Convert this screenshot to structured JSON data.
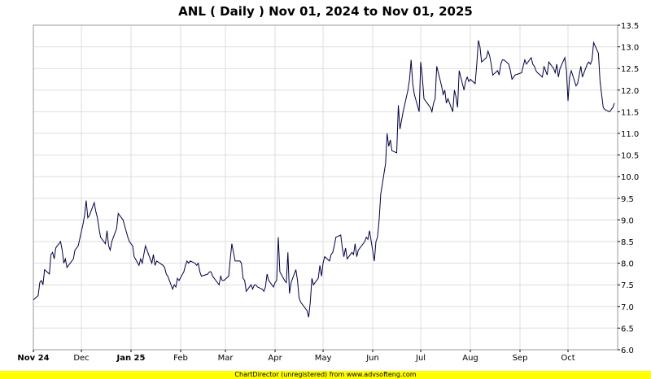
{
  "chart_data": {
    "type": "line",
    "title": "ANL ( Daily ) Nov 01, 2024 to Nov 01, 2025",
    "xlabel": "",
    "ylabel": "",
    "ylim": [
      6.0,
      13.5
    ],
    "y_ticks": [
      "6.0",
      "6.5",
      "7.0",
      "7.5",
      "8.0",
      "8.5",
      "9.0",
      "9.5",
      "10.0",
      "10.5",
      "11.0",
      "11.5",
      "12.0",
      "12.5",
      "13.0",
      "13.5"
    ],
    "y_axis_position": "right",
    "x_ticks": [
      {
        "label": "Nov 24",
        "date": "2024-11-01",
        "bold": true
      },
      {
        "label": "Dec",
        "date": "2024-12-01",
        "bold": false
      },
      {
        "label": "Jan 25",
        "date": "2025-01-01",
        "bold": true
      },
      {
        "label": "Feb",
        "date": "2025-02-01",
        "bold": false
      },
      {
        "label": "Mar",
        "date": "2025-03-01",
        "bold": false
      },
      {
        "label": "Apr",
        "date": "2025-04-01",
        "bold": false
      },
      {
        "label": "May",
        "date": "2025-05-01",
        "bold": false
      },
      {
        "label": "Jun",
        "date": "2025-06-01",
        "bold": false
      },
      {
        "label": "Jul",
        "date": "2025-07-01",
        "bold": false
      },
      {
        "label": "Aug",
        "date": "2025-08-01",
        "bold": false
      },
      {
        "label": "Sep",
        "date": "2025-09-01",
        "bold": false
      },
      {
        "label": "Oct",
        "date": "2025-10-01",
        "bold": false
      }
    ],
    "xlim": [
      "2024-11-01",
      "2025-11-01"
    ],
    "grid": true,
    "line_color": "#000040",
    "series": [
      {
        "values": [
          [
            "2024-11-01",
            7.15
          ],
          [
            "2024-11-04",
            7.25
          ],
          [
            "2024-11-05",
            7.55
          ],
          [
            "2024-11-06",
            7.6
          ],
          [
            "2024-11-07",
            7.5
          ],
          [
            "2024-11-08",
            7.85
          ],
          [
            "2024-11-11",
            7.75
          ],
          [
            "2024-11-12",
            8.2
          ],
          [
            "2024-11-13",
            8.25
          ],
          [
            "2024-11-14",
            8.1
          ],
          [
            "2024-11-15",
            8.35
          ],
          [
            "2024-11-18",
            8.5
          ],
          [
            "2024-11-19",
            8.3
          ],
          [
            "2024-11-20",
            8.0
          ],
          [
            "2024-11-21",
            8.1
          ],
          [
            "2024-11-22",
            7.9
          ],
          [
            "2024-11-25",
            8.05
          ],
          [
            "2024-11-26",
            8.1
          ],
          [
            "2024-11-27",
            8.3
          ],
          [
            "2024-11-29",
            8.4
          ],
          [
            "2024-12-02",
            8.9
          ],
          [
            "2024-12-03",
            9.1
          ],
          [
            "2024-12-04",
            9.45
          ],
          [
            "2024-12-05",
            9.05
          ],
          [
            "2024-12-06",
            9.1
          ],
          [
            "2024-12-09",
            9.4
          ],
          [
            "2024-12-10",
            9.2
          ],
          [
            "2024-12-11",
            9.05
          ],
          [
            "2024-12-12",
            8.8
          ],
          [
            "2024-12-13",
            8.6
          ],
          [
            "2024-12-16",
            8.45
          ],
          [
            "2024-12-17",
            8.75
          ],
          [
            "2024-12-18",
            8.4
          ],
          [
            "2024-12-19",
            8.3
          ],
          [
            "2024-12-20",
            8.5
          ],
          [
            "2024-12-23",
            8.8
          ],
          [
            "2024-12-24",
            9.15
          ],
          [
            "2024-12-26",
            9.05
          ],
          [
            "2024-12-27",
            9.0
          ],
          [
            "2024-12-30",
            8.6
          ],
          [
            "2024-12-31",
            8.5
          ],
          [
            "2025-01-02",
            8.4
          ],
          [
            "2025-01-03",
            8.15
          ],
          [
            "2025-01-06",
            7.95
          ],
          [
            "2025-01-07",
            8.1
          ],
          [
            "2025-01-08",
            8.0
          ],
          [
            "2025-01-10",
            8.4
          ],
          [
            "2025-01-13",
            8.1
          ],
          [
            "2025-01-14",
            8.0
          ],
          [
            "2025-01-15",
            8.2
          ],
          [
            "2025-01-16",
            7.95
          ],
          [
            "2025-01-17",
            8.05
          ],
          [
            "2025-01-21",
            7.95
          ],
          [
            "2025-01-22",
            7.9
          ],
          [
            "2025-01-23",
            7.75
          ],
          [
            "2025-01-24",
            7.7
          ],
          [
            "2025-01-27",
            7.4
          ],
          [
            "2025-01-28",
            7.5
          ],
          [
            "2025-01-29",
            7.45
          ],
          [
            "2025-01-30",
            7.65
          ],
          [
            "2025-01-31",
            7.6
          ],
          [
            "2025-02-03",
            7.8
          ],
          [
            "2025-02-04",
            7.95
          ],
          [
            "2025-02-05",
            8.05
          ],
          [
            "2025-02-06",
            8.0
          ],
          [
            "2025-02-07",
            8.05
          ],
          [
            "2025-02-10",
            8.0
          ],
          [
            "2025-02-11",
            7.95
          ],
          [
            "2025-02-12",
            8.0
          ],
          [
            "2025-02-13",
            7.8
          ],
          [
            "2025-02-14",
            7.7
          ],
          [
            "2025-02-18",
            7.75
          ],
          [
            "2025-02-19",
            7.8
          ],
          [
            "2025-02-20",
            7.8
          ],
          [
            "2025-02-21",
            7.7
          ],
          [
            "2025-02-24",
            7.55
          ],
          [
            "2025-02-25",
            7.5
          ],
          [
            "2025-02-26",
            7.7
          ],
          [
            "2025-02-27",
            7.6
          ],
          [
            "2025-02-28",
            7.6
          ],
          [
            "2025-03-03",
            7.7
          ],
          [
            "2025-03-04",
            8.1
          ],
          [
            "2025-03-05",
            8.45
          ],
          [
            "2025-03-06",
            8.25
          ],
          [
            "2025-03-07",
            8.05
          ],
          [
            "2025-03-10",
            8.05
          ],
          [
            "2025-03-11",
            8.0
          ],
          [
            "2025-03-12",
            7.65
          ],
          [
            "2025-03-13",
            7.6
          ],
          [
            "2025-03-14",
            7.35
          ],
          [
            "2025-03-17",
            7.5
          ],
          [
            "2025-03-18",
            7.4
          ],
          [
            "2025-03-19",
            7.5
          ],
          [
            "2025-03-20",
            7.5
          ],
          [
            "2025-03-21",
            7.45
          ],
          [
            "2025-03-24",
            7.4
          ],
          [
            "2025-03-25",
            7.35
          ],
          [
            "2025-03-26",
            7.45
          ],
          [
            "2025-03-27",
            7.75
          ],
          [
            "2025-03-28",
            7.6
          ],
          [
            "2025-03-31",
            7.45
          ],
          [
            "2025-04-01",
            7.55
          ],
          [
            "2025-04-02",
            7.6
          ],
          [
            "2025-04-03",
            8.6
          ],
          [
            "2025-04-04",
            7.8
          ],
          [
            "2025-04-07",
            7.6
          ],
          [
            "2025-04-08",
            7.55
          ],
          [
            "2025-04-09",
            8.25
          ],
          [
            "2025-04-10",
            7.3
          ],
          [
            "2025-04-11",
            7.55
          ],
          [
            "2025-04-14",
            7.85
          ],
          [
            "2025-04-15",
            7.6
          ],
          [
            "2025-04-16",
            7.2
          ],
          [
            "2025-04-17",
            7.1
          ],
          [
            "2025-04-21",
            6.9
          ],
          [
            "2025-04-22",
            6.75
          ],
          [
            "2025-04-23",
            7.1
          ],
          [
            "2025-04-24",
            7.65
          ],
          [
            "2025-04-25",
            7.5
          ],
          [
            "2025-04-28",
            7.65
          ],
          [
            "2025-04-29",
            7.95
          ],
          [
            "2025-04-30",
            7.7
          ],
          [
            "2025-05-01",
            8.0
          ],
          [
            "2025-05-02",
            8.15
          ],
          [
            "2025-05-05",
            8.05
          ],
          [
            "2025-05-06",
            8.2
          ],
          [
            "2025-05-07",
            8.25
          ],
          [
            "2025-05-08",
            8.4
          ],
          [
            "2025-05-09",
            8.6
          ],
          [
            "2025-05-12",
            8.65
          ],
          [
            "2025-05-13",
            8.35
          ],
          [
            "2025-05-14",
            8.15
          ],
          [
            "2025-05-15",
            8.35
          ],
          [
            "2025-05-16",
            8.1
          ],
          [
            "2025-05-19",
            8.25
          ],
          [
            "2025-05-20",
            8.2
          ],
          [
            "2025-05-21",
            8.45
          ],
          [
            "2025-05-22",
            8.15
          ],
          [
            "2025-05-23",
            8.3
          ],
          [
            "2025-05-27",
            8.5
          ],
          [
            "2025-05-28",
            8.6
          ],
          [
            "2025-05-29",
            8.55
          ],
          [
            "2025-05-30",
            8.75
          ],
          [
            "2025-06-02",
            8.05
          ],
          [
            "2025-06-03",
            8.5
          ],
          [
            "2025-06-04",
            8.6
          ],
          [
            "2025-06-05",
            9.0
          ],
          [
            "2025-06-06",
            9.6
          ],
          [
            "2025-06-09",
            10.3
          ],
          [
            "2025-06-10",
            11.0
          ],
          [
            "2025-06-11",
            10.7
          ],
          [
            "2025-06-12",
            10.85
          ],
          [
            "2025-06-13",
            10.6
          ],
          [
            "2025-06-16",
            10.55
          ],
          [
            "2025-06-17",
            11.65
          ],
          [
            "2025-06-18",
            11.1
          ],
          [
            "2025-06-20",
            11.5
          ],
          [
            "2025-06-23",
            12.0
          ],
          [
            "2025-06-24",
            12.25
          ],
          [
            "2025-06-25",
            12.7
          ],
          [
            "2025-06-26",
            12.15
          ],
          [
            "2025-06-27",
            11.9
          ],
          [
            "2025-06-30",
            11.5
          ],
          [
            "2025-07-01",
            12.65
          ],
          [
            "2025-07-02",
            12.3
          ],
          [
            "2025-07-03",
            11.8
          ],
          [
            "2025-07-07",
            11.6
          ],
          [
            "2025-07-08",
            11.5
          ],
          [
            "2025-07-09",
            11.7
          ],
          [
            "2025-07-10",
            11.8
          ],
          [
            "2025-07-11",
            12.55
          ],
          [
            "2025-07-14",
            12.1
          ],
          [
            "2025-07-15",
            11.9
          ],
          [
            "2025-07-16",
            12.0
          ],
          [
            "2025-07-17",
            11.7
          ],
          [
            "2025-07-18",
            11.8
          ],
          [
            "2025-07-21",
            11.5
          ],
          [
            "2025-07-22",
            12.0
          ],
          [
            "2025-07-23",
            11.85
          ],
          [
            "2025-07-24",
            11.6
          ],
          [
            "2025-07-25",
            12.45
          ],
          [
            "2025-07-28",
            12.0
          ],
          [
            "2025-07-29",
            12.2
          ],
          [
            "2025-07-30",
            12.3
          ],
          [
            "2025-07-31",
            12.2
          ],
          [
            "2025-08-01",
            12.25
          ],
          [
            "2025-08-04",
            12.15
          ],
          [
            "2025-08-05",
            12.6
          ],
          [
            "2025-08-06",
            13.15
          ],
          [
            "2025-08-07",
            13.0
          ],
          [
            "2025-08-08",
            12.65
          ],
          [
            "2025-08-11",
            12.75
          ],
          [
            "2025-08-12",
            12.9
          ],
          [
            "2025-08-13",
            12.8
          ],
          [
            "2025-08-14",
            12.6
          ],
          [
            "2025-08-15",
            12.35
          ],
          [
            "2025-08-18",
            12.45
          ],
          [
            "2025-08-19",
            12.35
          ],
          [
            "2025-08-20",
            12.6
          ],
          [
            "2025-08-21",
            12.7
          ],
          [
            "2025-08-22",
            12.7
          ],
          [
            "2025-08-25",
            12.6
          ],
          [
            "2025-08-26",
            12.45
          ],
          [
            "2025-08-27",
            12.25
          ],
          [
            "2025-08-28",
            12.3
          ],
          [
            "2025-08-29",
            12.35
          ],
          [
            "2025-09-02",
            12.4
          ],
          [
            "2025-09-03",
            12.55
          ],
          [
            "2025-09-04",
            12.7
          ],
          [
            "2025-09-05",
            12.6
          ],
          [
            "2025-09-08",
            12.75
          ],
          [
            "2025-09-09",
            12.6
          ],
          [
            "2025-09-10",
            12.55
          ],
          [
            "2025-09-11",
            12.45
          ],
          [
            "2025-09-12",
            12.4
          ],
          [
            "2025-09-15",
            12.3
          ],
          [
            "2025-09-16",
            12.55
          ],
          [
            "2025-09-17",
            12.45
          ],
          [
            "2025-09-18",
            12.35
          ],
          [
            "2025-09-19",
            12.65
          ],
          [
            "2025-09-22",
            12.5
          ],
          [
            "2025-09-23",
            12.4
          ],
          [
            "2025-09-24",
            12.6
          ],
          [
            "2025-09-25",
            12.3
          ],
          [
            "2025-09-26",
            12.5
          ],
          [
            "2025-09-29",
            12.75
          ],
          [
            "2025-09-30",
            12.45
          ],
          [
            "2025-10-01",
            11.75
          ],
          [
            "2025-10-02",
            12.3
          ],
          [
            "2025-10-03",
            12.45
          ],
          [
            "2025-10-06",
            12.1
          ],
          [
            "2025-10-07",
            12.15
          ],
          [
            "2025-10-08",
            12.35
          ],
          [
            "2025-10-09",
            12.55
          ],
          [
            "2025-10-10",
            12.3
          ],
          [
            "2025-10-13",
            12.6
          ],
          [
            "2025-10-14",
            12.65
          ],
          [
            "2025-10-15",
            12.6
          ],
          [
            "2025-10-16",
            12.7
          ],
          [
            "2025-10-17",
            13.1
          ],
          [
            "2025-10-20",
            12.85
          ],
          [
            "2025-10-21",
            12.2
          ],
          [
            "2025-10-22",
            11.9
          ],
          [
            "2025-10-23",
            11.6
          ],
          [
            "2025-10-24",
            11.55
          ],
          [
            "2025-10-27",
            11.5
          ],
          [
            "2025-10-28",
            11.55
          ],
          [
            "2025-10-29",
            11.6
          ],
          [
            "2025-10-30",
            11.7
          ]
        ]
      }
    ]
  },
  "footer": {
    "text": "ChartDirector (unregistered) from www.advsofteng.com",
    "background": "#ffff00"
  }
}
